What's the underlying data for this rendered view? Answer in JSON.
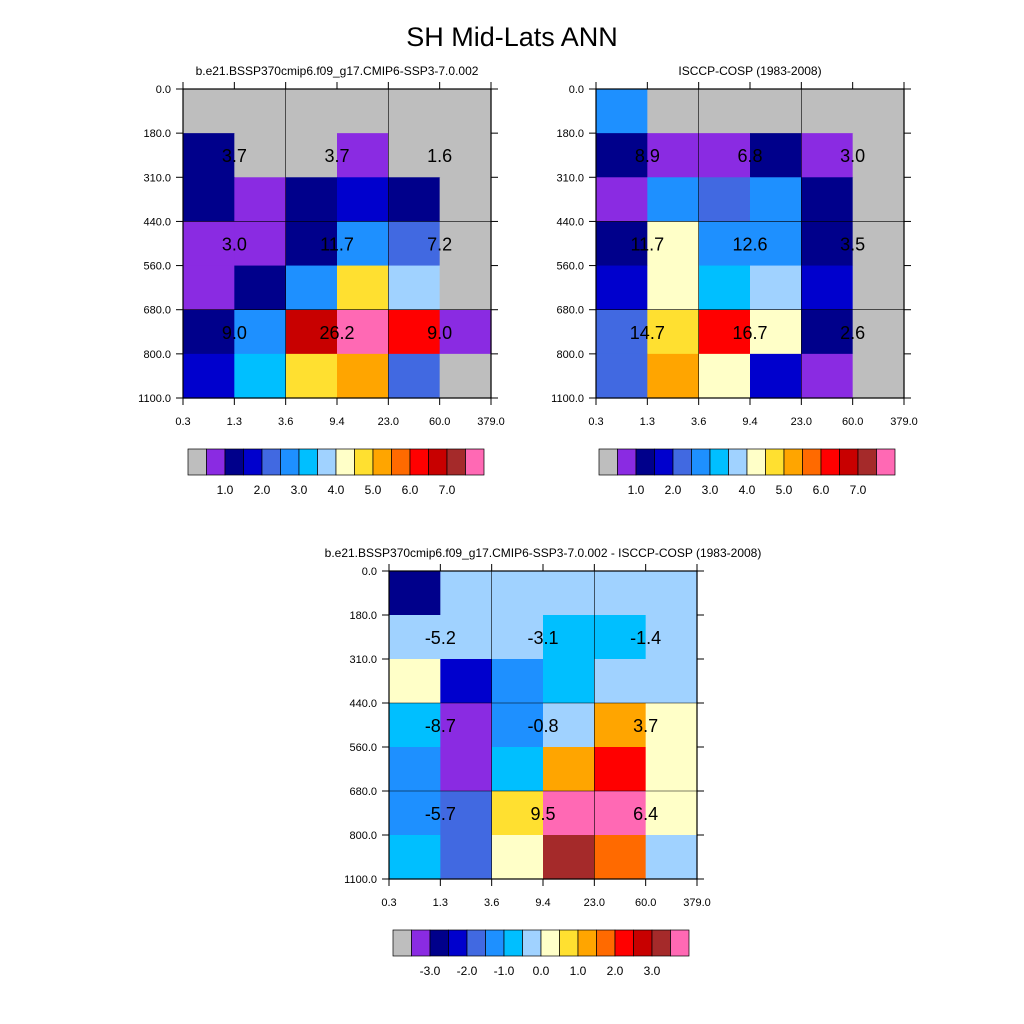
{
  "page": {
    "title": "SH Mid-Lats ANN"
  },
  "palette": {
    "missing": "#bebebe",
    "abs": [
      "#8a2be2",
      "#00008b",
      "#0000cd",
      "#4169e1",
      "#1e90ff",
      "#00bfff",
      "#a0d2ff",
      "#ffffc8",
      "#ffe030",
      "#ffa500",
      "#ff6a00",
      "#ff0000",
      "#c80000",
      "#a52a2a",
      "#ff69b4"
    ],
    "diff": [
      "#8a2be2",
      "#00008b",
      "#0000cd",
      "#4169e1",
      "#1e90ff",
      "#00bfff",
      "#a0d2ff",
      "#ffffc8",
      "#ffe030",
      "#ffa500",
      "#ff6a00",
      "#ff0000",
      "#c80000",
      "#a52a2a",
      "#ff69b4"
    ]
  },
  "chart_data": [
    {
      "type": "heatmap",
      "title": "b.e21.BSSP370cmip6.f09_g17.CMIP6-SSP3-7.0.002",
      "x_ticks": [
        "0.3",
        "1.3",
        "3.6",
        "9.4",
        "23.0",
        "60.0",
        "379.0"
      ],
      "y_ticks": [
        "0.0",
        "180.0",
        "310.0",
        "440.0",
        "560.0",
        "680.0",
        "800.0",
        "1100.0"
      ],
      "grid_colors": [
        [
          -1,
          -1,
          -1,
          -1,
          -1,
          -1
        ],
        [
          1,
          -1,
          -1,
          0,
          -1,
          -1
        ],
        [
          1,
          0,
          1,
          2,
          1,
          -1
        ],
        [
          0,
          0,
          1,
          4,
          3,
          -1
        ],
        [
          0,
          1,
          4,
          8,
          6,
          -1
        ],
        [
          1,
          4,
          12,
          14,
          11,
          0
        ],
        [
          2,
          5,
          8,
          9,
          3,
          -1
        ]
      ],
      "block_labels": [
        [
          {
            "row": 1,
            "col": 0,
            "text": "3.7"
          },
          {
            "row": 1,
            "col": 1,
            "text": "3.7"
          },
          {
            "row": 1,
            "col": 2,
            "text": "1.6"
          }
        ],
        [
          {
            "row": 2,
            "col": 0,
            "text": "3.0"
          },
          {
            "row": 2,
            "col": 1,
            "text": "11.7"
          },
          {
            "row": 2,
            "col": 2,
            "text": "7.2"
          }
        ],
        [
          {
            "row": 3,
            "col": 0,
            "text": "9.0"
          },
          {
            "row": 3,
            "col": 1,
            "text": "26.2"
          },
          {
            "row": 3,
            "col": 2,
            "text": "9.0"
          }
        ]
      ],
      "colorbar": {
        "palette": "abs",
        "labels": [
          "1.0",
          "2.0",
          "3.0",
          "4.0",
          "5.0",
          "6.0",
          "7.0"
        ]
      }
    },
    {
      "type": "heatmap",
      "title": "ISCCP-COSP (1983-2008)",
      "x_ticks": [
        "0.3",
        "1.3",
        "3.6",
        "9.4",
        "23.0",
        "60.0",
        "379.0"
      ],
      "y_ticks": [
        "0.0",
        "180.0",
        "310.0",
        "440.0",
        "560.0",
        "680.0",
        "800.0",
        "1100.0"
      ],
      "grid_colors": [
        [
          4,
          -1,
          -1,
          -1,
          -1,
          -1
        ],
        [
          1,
          0,
          0,
          1,
          0,
          -1
        ],
        [
          0,
          4,
          3,
          4,
          1,
          -1
        ],
        [
          1,
          7,
          4,
          4,
          1,
          -1
        ],
        [
          2,
          7,
          5,
          6,
          2,
          -1
        ],
        [
          3,
          8,
          11,
          7,
          1,
          -1
        ],
        [
          3,
          9,
          7,
          2,
          0,
          -1
        ]
      ],
      "block_labels": [
        [
          {
            "row": 1,
            "col": 0,
            "text": "8.9"
          },
          {
            "row": 1,
            "col": 1,
            "text": "6.8"
          },
          {
            "row": 1,
            "col": 2,
            "text": "3.0"
          }
        ],
        [
          {
            "row": 2,
            "col": 0,
            "text": "11.7"
          },
          {
            "row": 2,
            "col": 1,
            "text": "12.6"
          },
          {
            "row": 2,
            "col": 2,
            "text": "3.5"
          }
        ],
        [
          {
            "row": 3,
            "col": 0,
            "text": "14.7"
          },
          {
            "row": 3,
            "col": 1,
            "text": "16.7"
          },
          {
            "row": 3,
            "col": 2,
            "text": "2.6"
          }
        ]
      ],
      "colorbar": {
        "palette": "abs",
        "labels": [
          "1.0",
          "2.0",
          "3.0",
          "4.0",
          "5.0",
          "6.0",
          "7.0"
        ]
      }
    },
    {
      "type": "heatmap",
      "title": "b.e21.BSSP370cmip6.f09_g17.CMIP6-SSP3-7.0.002 - ISCCP-COSP (1983-2008)",
      "x_ticks": [
        "0.3",
        "1.3",
        "3.6",
        "9.4",
        "23.0",
        "60.0",
        "379.0"
      ],
      "y_ticks": [
        "0.0",
        "180.0",
        "310.0",
        "440.0",
        "560.0",
        "680.0",
        "800.0",
        "1100.0"
      ],
      "grid_colors": [
        [
          1,
          6,
          6,
          6,
          6,
          6
        ],
        [
          6,
          6,
          6,
          5,
          5,
          6
        ],
        [
          7,
          2,
          4,
          5,
          6,
          6
        ],
        [
          5,
          0,
          4,
          6,
          9,
          7
        ],
        [
          4,
          0,
          5,
          9,
          11,
          7
        ],
        [
          4,
          3,
          8,
          14,
          14,
          7
        ],
        [
          5,
          3,
          7,
          13,
          10,
          6
        ]
      ],
      "block_labels": [
        [
          {
            "row": 1,
            "col": 0,
            "text": "-5.2"
          },
          {
            "row": 1,
            "col": 1,
            "text": "-3.1"
          },
          {
            "row": 1,
            "col": 2,
            "text": "-1.4"
          }
        ],
        [
          {
            "row": 2,
            "col": 0,
            "text": "-8.7"
          },
          {
            "row": 2,
            "col": 1,
            "text": "-0.8"
          },
          {
            "row": 2,
            "col": 2,
            "text": "3.7"
          }
        ],
        [
          {
            "row": 3,
            "col": 0,
            "text": "-5.7"
          },
          {
            "row": 3,
            "col": 1,
            "text": "9.5"
          },
          {
            "row": 3,
            "col": 2,
            "text": "6.4"
          }
        ]
      ],
      "colorbar": {
        "palette": "diff",
        "labels": [
          "-3.0",
          "-2.0",
          "-1.0",
          "0.0",
          "1.0",
          "2.0",
          "3.0"
        ]
      }
    }
  ]
}
